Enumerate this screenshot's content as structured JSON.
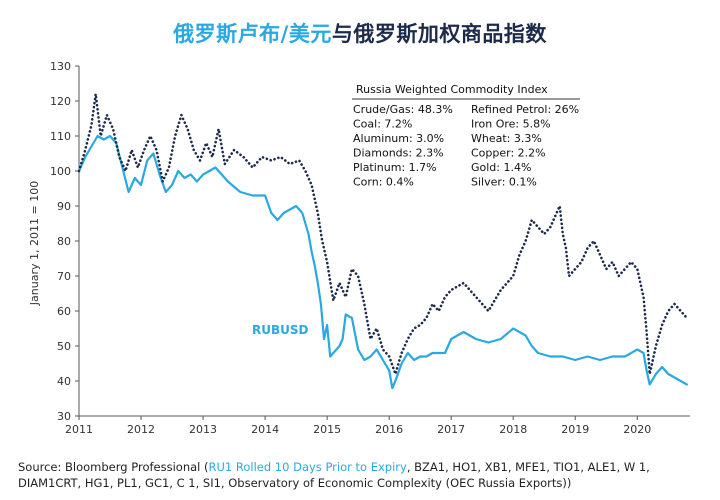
{
  "title": {
    "part_blue": "俄罗斯卢布/美元",
    "part_dark": "与俄罗斯加权商品指数"
  },
  "colors": {
    "rub": "#2aa9e0",
    "index": "#1d2b4a",
    "axis": "#555555"
  },
  "chart_data": {
    "type": "line",
    "title": "俄罗斯卢布/美元与俄罗斯加权商品指数",
    "ylabel": "January 1, 2011 = 100",
    "xlabel": "",
    "ylim": [
      30,
      130
    ],
    "yticks": [
      30,
      40,
      50,
      60,
      70,
      80,
      90,
      100,
      110,
      120,
      130
    ],
    "xlim": [
      2011,
      2020.85
    ],
    "xticks": [
      "2011",
      "2012",
      "2013",
      "2014",
      "2015",
      "2016",
      "2017",
      "2018",
      "2019",
      "2020"
    ],
    "grid": false,
    "series": [
      {
        "name": "RUBUSD",
        "style": "solid",
        "x": [
          2011.0,
          2011.1,
          2011.2,
          2011.3,
          2011.4,
          2011.5,
          2011.6,
          2011.7,
          2011.8,
          2011.9,
          2012.0,
          2012.1,
          2012.2,
          2012.3,
          2012.4,
          2012.5,
          2012.6,
          2012.7,
          2012.8,
          2012.9,
          2013.0,
          2013.2,
          2013.4,
          2013.6,
          2013.8,
          2014.0,
          2014.1,
          2014.2,
          2014.3,
          2014.4,
          2014.5,
          2014.6,
          2014.7,
          2014.75,
          2014.8,
          2014.85,
          2014.9,
          2014.95,
          2015.0,
          2015.05,
          2015.1,
          2015.2,
          2015.25,
          2015.3,
          2015.4,
          2015.5,
          2015.6,
          2015.7,
          2015.8,
          2015.9,
          2016.0,
          2016.05,
          2016.1,
          2016.2,
          2016.3,
          2016.4,
          2016.5,
          2016.6,
          2016.7,
          2016.8,
          2016.9,
          2017.0,
          2017.2,
          2017.4,
          2017.6,
          2017.8,
          2018.0,
          2018.2,
          2018.3,
          2018.4,
          2018.6,
          2018.8,
          2019.0,
          2019.2,
          2019.4,
          2019.6,
          2019.8,
          2020.0,
          2020.1,
          2020.15,
          2020.2,
          2020.3,
          2020.4,
          2020.5,
          2020.6,
          2020.7,
          2020.8
        ],
        "y": [
          100,
          104,
          107,
          110,
          109,
          110,
          108,
          101,
          94,
          98,
          96,
          103,
          105,
          99,
          94,
          96,
          100,
          98,
          99,
          97,
          99,
          101,
          97,
          94,
          93,
          93,
          88,
          86,
          88,
          89,
          90,
          88,
          82,
          77,
          73,
          68,
          62,
          52,
          56,
          47,
          48,
          50,
          52,
          59,
          58,
          49,
          46,
          47,
          49,
          46,
          43,
          38,
          40,
          45,
          48,
          46,
          47,
          47,
          48,
          48,
          48,
          52,
          54,
          52,
          51,
          52,
          55,
          53,
          50,
          48,
          47,
          47,
          46,
          47,
          46,
          47,
          47,
          49,
          48,
          43,
          39,
          42,
          44,
          42,
          41,
          40,
          39
        ]
      },
      {
        "name": "Russia Weighted Commodity Index",
        "style": "dotted",
        "x": [
          2011.0,
          2011.1,
          2011.2,
          2011.27,
          2011.35,
          2011.45,
          2011.55,
          2011.65,
          2011.75,
          2011.85,
          2011.95,
          2012.05,
          2012.15,
          2012.25,
          2012.35,
          2012.45,
          2012.55,
          2012.65,
          2012.75,
          2012.85,
          2012.95,
          2013.05,
          2013.15,
          2013.25,
          2013.35,
          2013.5,
          2013.65,
          2013.8,
          2013.95,
          2014.1,
          2014.25,
          2014.4,
          2014.55,
          2014.65,
          2014.75,
          2014.85,
          2014.92,
          2015.0,
          2015.1,
          2015.2,
          2015.3,
          2015.4,
          2015.5,
          2015.6,
          2015.7,
          2015.8,
          2015.9,
          2016.0,
          2016.1,
          2016.2,
          2016.3,
          2016.4,
          2016.5,
          2016.6,
          2016.7,
          2016.8,
          2016.9,
          2017.0,
          2017.2,
          2017.4,
          2017.6,
          2017.8,
          2018.0,
          2018.1,
          2018.2,
          2018.3,
          2018.4,
          2018.5,
          2018.6,
          2018.7,
          2018.75,
          2018.8,
          2018.85,
          2018.9,
          2019.0,
          2019.1,
          2019.2,
          2019.3,
          2019.4,
          2019.5,
          2019.6,
          2019.7,
          2019.8,
          2019.9,
          2020.0,
          2020.1,
          2020.15,
          2020.2,
          2020.3,
          2020.4,
          2020.5,
          2020.6,
          2020.7,
          2020.8
        ],
        "y": [
          100,
          106,
          113,
          122,
          110,
          116,
          112,
          104,
          100,
          106,
          101,
          106,
          110,
          106,
          97,
          101,
          110,
          116,
          112,
          106,
          103,
          108,
          104,
          112,
          102,
          106,
          104,
          101,
          104,
          103,
          104,
          102,
          103,
          100,
          96,
          88,
          80,
          74,
          63,
          68,
          64,
          72,
          70,
          62,
          52,
          55,
          49,
          47,
          42,
          48,
          52,
          55,
          56,
          58,
          62,
          60,
          64,
          66,
          68,
          64,
          60,
          66,
          70,
          76,
          80,
          86,
          84,
          82,
          84,
          88,
          90,
          82,
          78,
          70,
          72,
          74,
          78,
          80,
          76,
          72,
          74,
          70,
          72,
          74,
          72,
          64,
          54,
          42,
          50,
          56,
          60,
          62,
          60,
          58
        ]
      }
    ],
    "annotations": [
      {
        "text": "RUBUSD"
      }
    ],
    "legend_table": {
      "title": "Russia Weighted Commodity Index",
      "rows": [
        [
          "Crude/Gas: 48.3%",
          "Refined Petrol: 26%"
        ],
        [
          "Coal: 7.2%",
          "Iron Ore: 5.8%"
        ],
        [
          "Aluminum: 3.0%",
          "Wheat: 3.3%"
        ],
        [
          "Diamonds: 2.3%",
          "Copper: 2.2%"
        ],
        [
          "Platinum: 1.7%",
          "Gold: 1.4%"
        ],
        [
          "Corn: 0.4%",
          "Silver: 0.1%"
        ]
      ]
    }
  },
  "source": {
    "prefix": "Source: Bloomberg Professional (",
    "highlight": "RU1 Rolled 10 Days Prior to Expiry",
    "suffix": ", BZA1, HO1, XB1, MFE1, TIO1, ALE1, W 1, DIAM1CRT, HG1, PL1, GC1, C 1, SI1, Observatory of Economic Complexity (OEC Russia Exports))"
  }
}
